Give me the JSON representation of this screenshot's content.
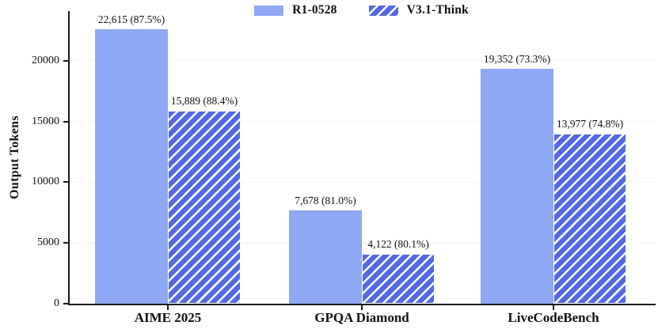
{
  "chart_data": {
    "type": "bar",
    "title": "",
    "xlabel": "",
    "ylabel": "Output Tokens",
    "categories": [
      "AIME 2025",
      "GPQA Diamond",
      "LiveCodeBench"
    ],
    "series": [
      {
        "name": "R1-0528",
        "pattern": "solid",
        "color": "#8fa8f3",
        "values": [
          22615,
          7678,
          19352
        ],
        "bar_labels": [
          "22,615 (87.5%)",
          "7,678 (81.0%)",
          "19,352 (73.3%)"
        ]
      },
      {
        "name": "V3.1-Think",
        "pattern": "hatch-forward-diagonal",
        "color": "#5468e4",
        "hatch_color": "#ffffff",
        "values": [
          15889,
          4122,
          13977
        ],
        "bar_labels": [
          "15,889 (88.4%)",
          "4,122 (80.1%)",
          "13,977 (74.8%)"
        ]
      }
    ],
    "yticks": [
      0,
      5000,
      10000,
      15000,
      20000
    ],
    "ylim": [
      0,
      24100
    ],
    "grid": "faint-horizontal-lines",
    "legend_position": "top-center",
    "spine_color": "#1a1a1a"
  }
}
